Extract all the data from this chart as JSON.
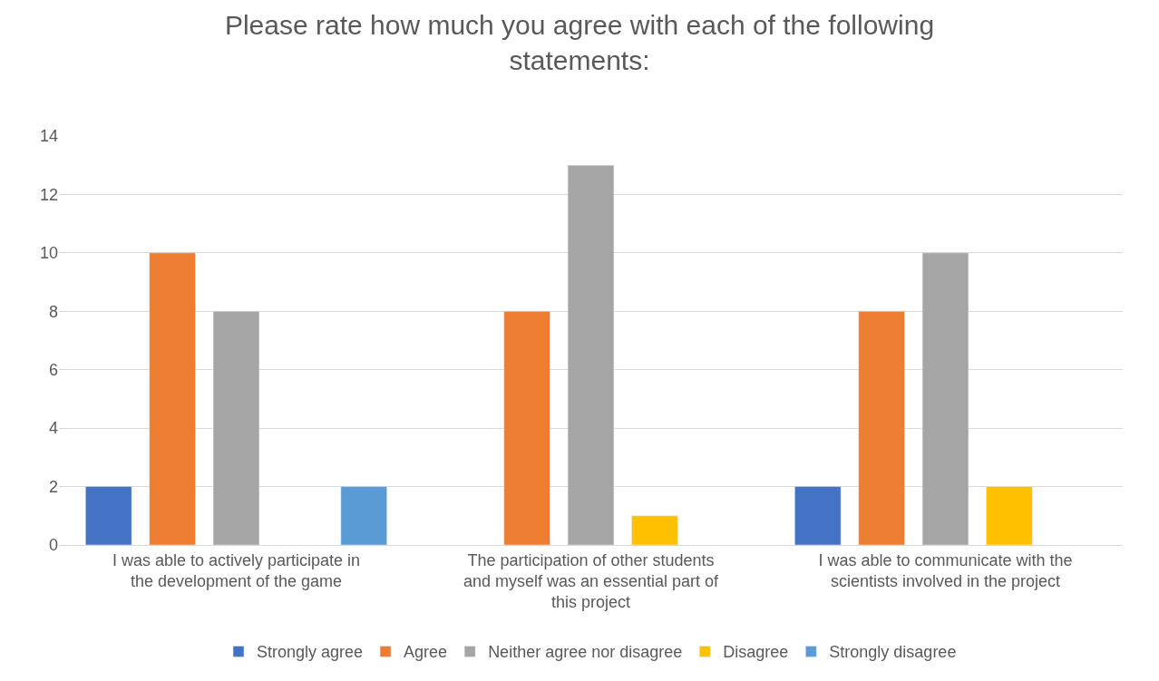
{
  "chart_data": {
    "type": "bar",
    "title": "Please rate how much you agree with each of the following statements:",
    "categories": [
      "I was able to actively participate in the development of the game",
      "The participation of other students and myself was an essential part of this project",
      "I was able to communicate with the scientists involved in the project"
    ],
    "series": [
      {
        "name": "Strongly agree",
        "color": "#4472c4",
        "values": [
          2,
          null,
          2
        ]
      },
      {
        "name": "Agree",
        "color": "#ed7d31",
        "values": [
          10,
          8,
          8
        ]
      },
      {
        "name": "Neither agree nor disagree",
        "color": "#a5a5a5",
        "values": [
          8,
          13,
          10
        ]
      },
      {
        "name": "Disagree",
        "color": "#ffc000",
        "values": [
          null,
          1,
          2
        ]
      },
      {
        "name": "Strongly disagree",
        "color": "#5b9bd5",
        "values": [
          2,
          null,
          null
        ]
      }
    ],
    "ylim": [
      0,
      14
    ],
    "yticks": [
      0,
      2,
      4,
      6,
      8,
      10,
      12,
      14
    ],
    "grid": "y",
    "legend": "bottom"
  }
}
